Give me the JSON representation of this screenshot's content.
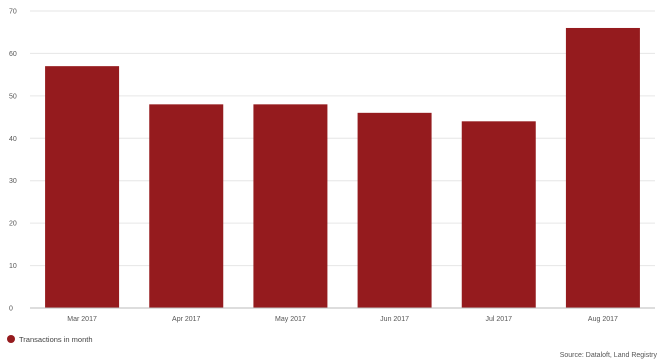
{
  "chart_data": {
    "type": "bar",
    "title": "",
    "xlabel": "",
    "ylabel": "",
    "categories": [
      "Mar 2017",
      "Apr 2017",
      "May 2017",
      "Jun 2017",
      "Jul 2017",
      "Aug 2017"
    ],
    "series": [
      {
        "name": "Transactions in month",
        "values": [
          57,
          48,
          48,
          46,
          44,
          66
        ],
        "color": "#951b1e"
      }
    ],
    "ylim": [
      0,
      70
    ],
    "yticks": [
      "0",
      "10",
      "20",
      "30",
      "40",
      "50",
      "60",
      "70"
    ],
    "grid": true,
    "legend_position": "bottom-left"
  },
  "source": "Source: Dataloft, Land Registry",
  "colors": {
    "bar": "#951b1e",
    "grid": "#e6e6e6",
    "axis": "#bbbbbb"
  }
}
